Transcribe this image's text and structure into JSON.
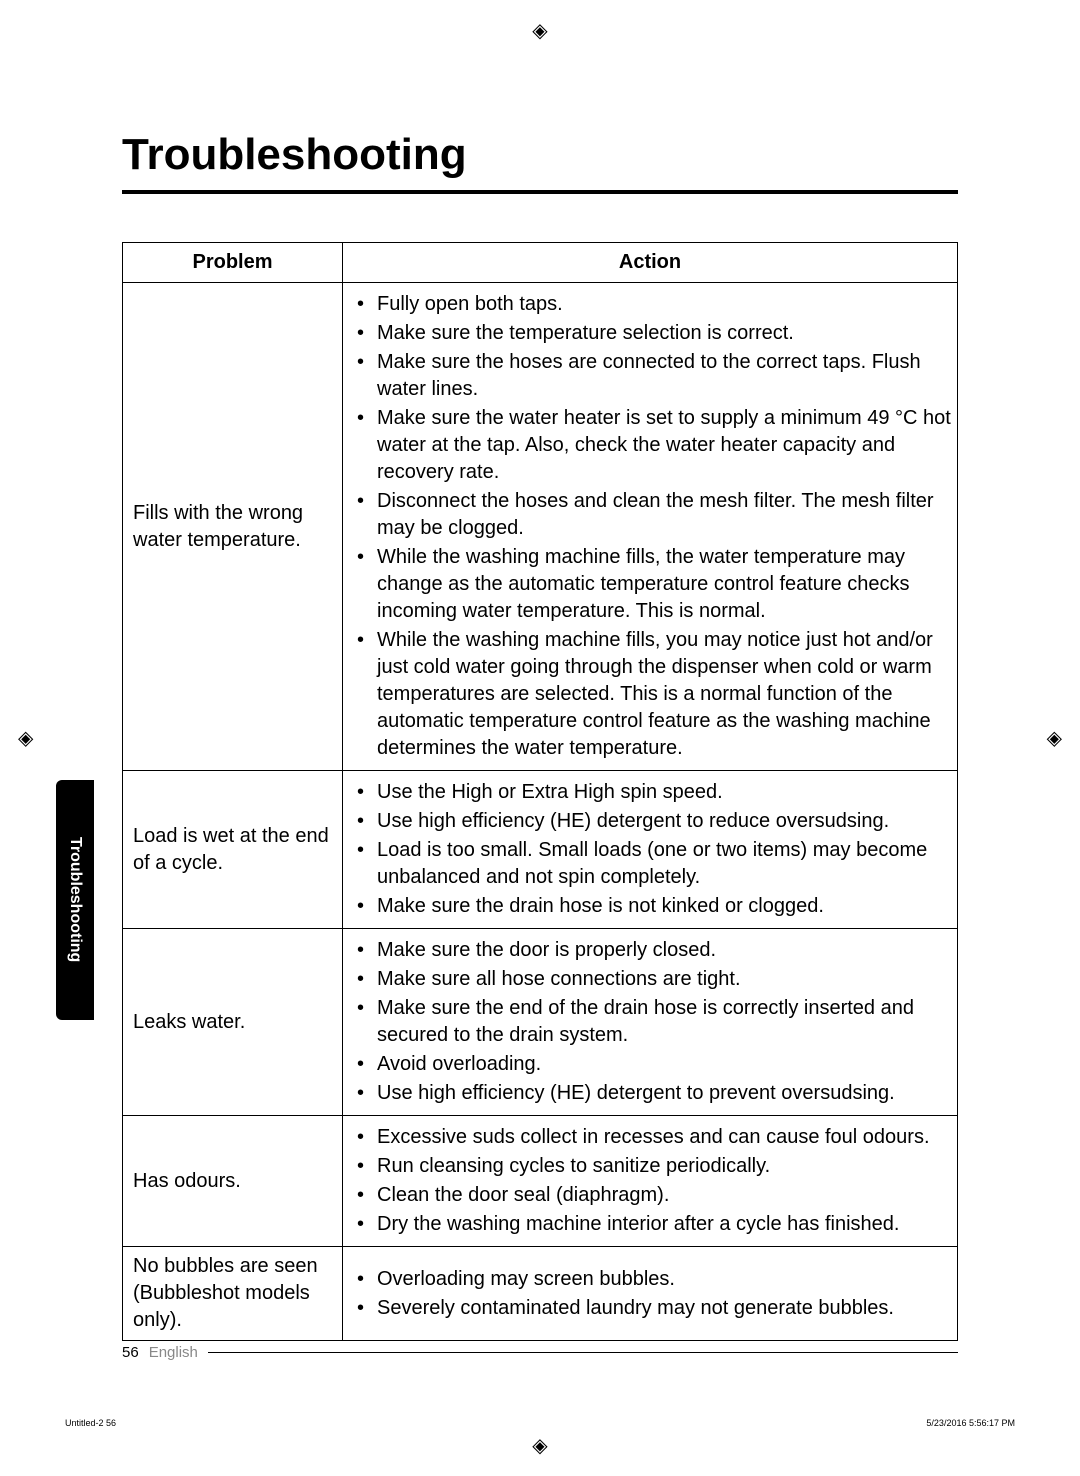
{
  "heading": "Troubleshooting",
  "table": {
    "headers": {
      "problem": "Problem",
      "action": "Action"
    },
    "rows": [
      {
        "problem": "Fills with the wrong water temperature.",
        "actions": [
          "Fully open both taps.",
          "Make sure the temperature selection is correct.",
          "Make sure the hoses are connected to the correct taps. Flush water lines.",
          "Make sure the water heater is set to supply a minimum 49 °C hot water at the tap. Also, check the water heater capacity and recovery rate.",
          "Disconnect the hoses and clean the mesh filter. The mesh filter may be clogged.",
          "While the washing machine fills, the water temperature may change as the automatic temperature control feature checks incoming water temperature. This is normal.",
          "While the washing machine fills, you may notice just hot and/or just cold water going through the dispenser when cold or warm temperatures are selected. This is a normal function of the automatic temperature control feature as the washing machine determines the water temperature."
        ]
      },
      {
        "problem": "Load is wet at the end of a cycle.",
        "actions": [
          "Use the High or Extra High spin speed.",
          "Use high efficiency (HE) detergent to reduce oversudsing.",
          "Load is too small. Small loads (one or two items) may become unbalanced and not spin completely.",
          "Make sure the drain hose is not kinked or clogged."
        ]
      },
      {
        "problem": "Leaks water.",
        "actions": [
          "Make sure the door is properly closed.",
          "Make sure all hose connections are tight.",
          "Make sure the end of the drain hose is correctly inserted and secured to the drain system.",
          "Avoid overloading.",
          "Use high efficiency (HE) detergent to prevent oversudsing."
        ]
      },
      {
        "problem": "Has odours.",
        "actions": [
          "Excessive suds collect in recesses and can cause foul odours.",
          "Run cleansing cycles to sanitize periodically.",
          "Clean the door seal (diaphragm).",
          "Dry the washing machine interior after a cycle has finished."
        ]
      },
      {
        "problem": "No bubbles are seen (Bubbleshot models only).",
        "actions": [
          "Overloading may screen bubbles.",
          "Severely contaminated laundry may not generate bubbles."
        ]
      }
    ]
  },
  "sideTab": "Troubleshooting",
  "footer": {
    "pageNumber": "56",
    "language": "English"
  },
  "tiny": {
    "left": "Untitled-2   56",
    "right": "5/23/2016   5:56:17 PM"
  },
  "registrationGlyph": "◈"
}
